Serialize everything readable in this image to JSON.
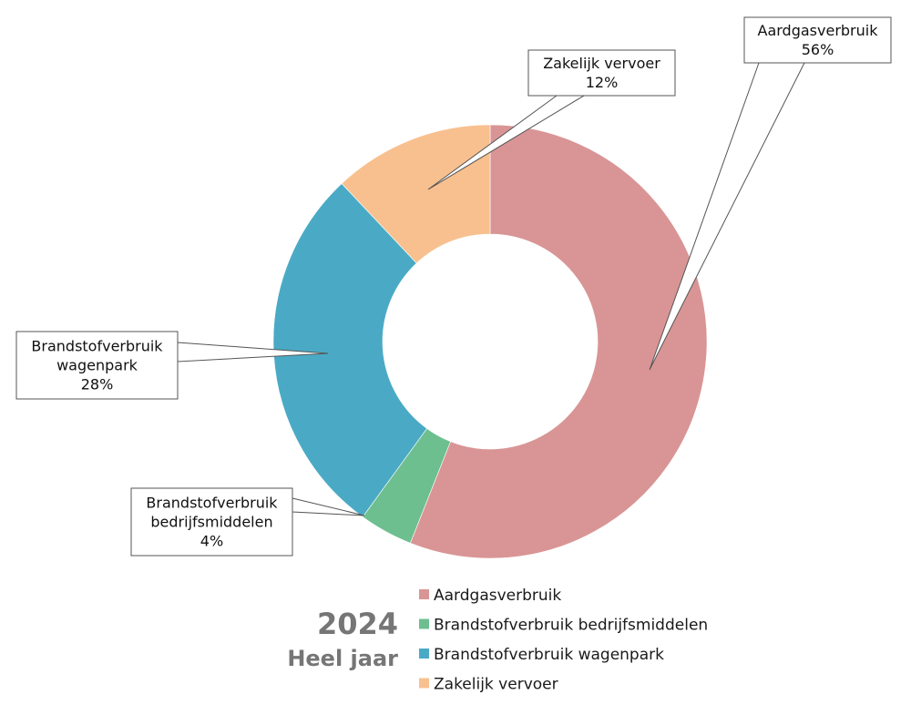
{
  "chart_data": {
    "type": "pie",
    "subtype": "donut",
    "title": "2024",
    "subtitle": "Heel jaar",
    "slices": [
      {
        "label": "Aardgasverbruik",
        "value": 56,
        "value_label": "56%",
        "color": "#d99595"
      },
      {
        "label": "Brandstofverbruik bedrijfsmiddelen",
        "value": 4,
        "value_label": "4%",
        "color": "#6dbf8f"
      },
      {
        "label": "Brandstofverbruik wagenpark",
        "value": 28,
        "value_label": "28%",
        "color": "#4aaac5"
      },
      {
        "label": "Zakelijk vervoer",
        "value": 12,
        "value_label": "12%",
        "color": "#f8c08f"
      }
    ],
    "callouts": [
      {
        "lines": [
          "Aardgasverbruik",
          "56%"
        ]
      },
      {
        "lines": [
          "Brandstofverbruik",
          "bedrijfsmiddelen",
          "4%"
        ]
      },
      {
        "lines": [
          "Brandstofverbruik",
          "wagenpark",
          "28%"
        ]
      },
      {
        "lines": [
          "Zakelijk vervoer",
          "12%"
        ]
      }
    ],
    "legend_position": "bottom"
  }
}
